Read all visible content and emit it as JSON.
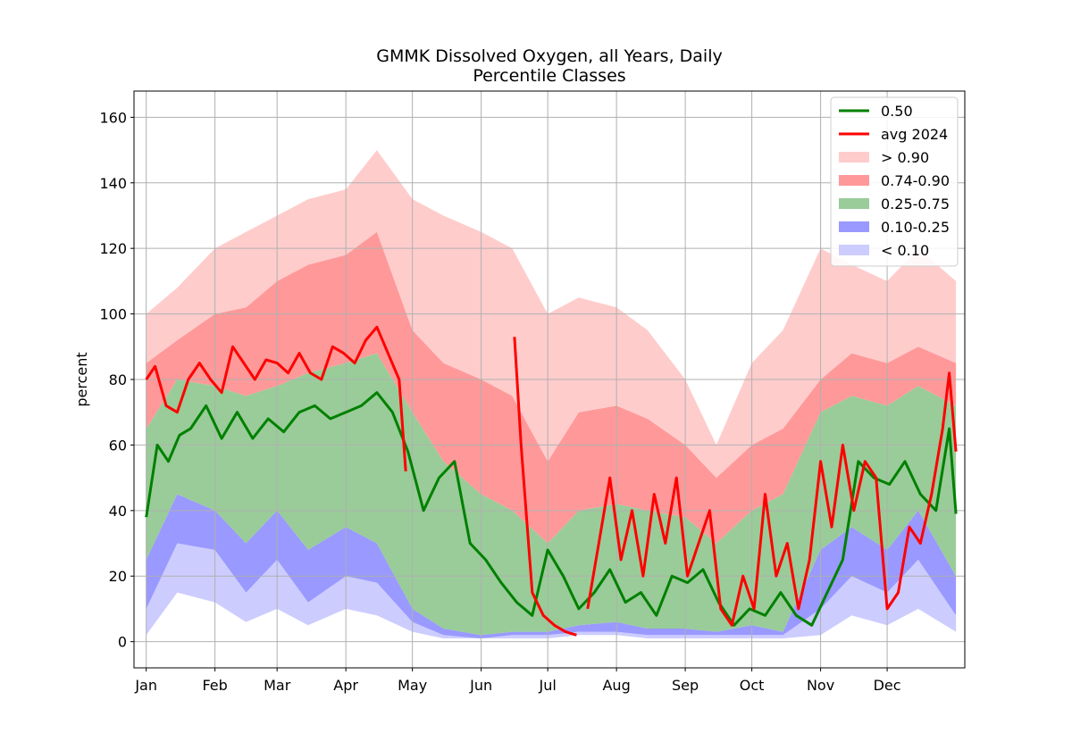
{
  "chart_data": {
    "type": "area",
    "title": "GMMK Dissolved Oxygen, all Years, Daily",
    "subtitle": "Percentile Classes",
    "xlabel": "",
    "ylabel": "percent",
    "ylim": [
      -8,
      168
    ],
    "yticks": [
      0,
      20,
      40,
      60,
      80,
      100,
      120,
      140,
      160
    ],
    "xticks": [
      "Jan",
      "Feb",
      "Mar",
      "Apr",
      "May",
      "Jun",
      "Jul",
      "Aug",
      "Sep",
      "Oct",
      "Nov",
      "Dec"
    ],
    "grid": true,
    "legend_position": "top-right",
    "colors": {
      "median": "#008000",
      "avg2024": "#ff0000",
      "above90": "#ffcccc",
      "p74_90": "#ff9999",
      "p25_75": "#99cc99",
      "p10_25": "#9999ff",
      "below10": "#ccccff"
    },
    "legend": [
      {
        "label": "0.50",
        "kind": "line",
        "color": "#008000"
      },
      {
        "label": "avg 2024",
        "kind": "line",
        "color": "#ff0000"
      },
      {
        "label": "> 0.90",
        "kind": "patch",
        "color": "#ffcccc"
      },
      {
        "label": "0.74-0.90",
        "kind": "patch",
        "color": "#ff9999"
      },
      {
        "label": "0.25-0.75",
        "kind": "patch",
        "color": "#99cc99"
      },
      {
        "label": "0.10-0.25",
        "kind": "patch",
        "color": "#9999ff"
      },
      {
        "label": "< 0.10",
        "kind": "patch",
        "color": "#ccccff"
      }
    ],
    "x_days": [
      1,
      15,
      32,
      46,
      60,
      74,
      91,
      105,
      121,
      135,
      152,
      166,
      182,
      196,
      213,
      227,
      244,
      258,
      274,
      288,
      305,
      319,
      335,
      349,
      366
    ],
    "series": [
      {
        "name": "< 0.10",
        "role": "band",
        "lower": [
          2,
          15,
          12,
          6,
          10,
          5,
          10,
          8,
          3,
          1,
          1,
          1,
          1,
          2,
          2,
          1,
          1,
          1,
          1,
          1,
          2,
          8,
          5,
          10,
          3
        ],
        "upper": [
          10,
          30,
          28,
          15,
          25,
          12,
          20,
          18,
          6,
          2,
          1,
          2,
          2,
          3,
          3,
          2,
          2,
          2,
          2,
          2,
          10,
          20,
          15,
          25,
          8
        ]
      },
      {
        "name": "0.10-0.25",
        "role": "band",
        "lower": [
          10,
          30,
          28,
          15,
          25,
          12,
          20,
          18,
          6,
          2,
          1,
          2,
          2,
          3,
          3,
          2,
          2,
          2,
          2,
          2,
          10,
          20,
          15,
          25,
          8
        ],
        "upper": [
          25,
          45,
          40,
          30,
          40,
          28,
          35,
          30,
          10,
          4,
          2,
          3,
          3,
          5,
          6,
          4,
          4,
          3,
          5,
          3,
          28,
          35,
          28,
          40,
          20
        ]
      },
      {
        "name": "0.25-0.75",
        "role": "band",
        "lower": [
          25,
          45,
          40,
          30,
          40,
          28,
          35,
          30,
          10,
          4,
          2,
          3,
          3,
          5,
          6,
          4,
          4,
          3,
          5,
          3,
          28,
          35,
          28,
          40,
          20
        ],
        "upper": [
          65,
          80,
          78,
          75,
          78,
          82,
          85,
          88,
          70,
          55,
          45,
          40,
          30,
          40,
          42,
          40,
          38,
          30,
          40,
          45,
          70,
          75,
          72,
          78,
          72
        ]
      },
      {
        "name": "0.74-0.90",
        "role": "band",
        "lower": [
          65,
          80,
          78,
          75,
          78,
          82,
          85,
          88,
          70,
          55,
          45,
          40,
          30,
          40,
          42,
          40,
          38,
          30,
          40,
          45,
          70,
          75,
          72,
          78,
          72
        ],
        "upper": [
          85,
          92,
          100,
          102,
          110,
          115,
          118,
          125,
          95,
          85,
          80,
          75,
          55,
          70,
          72,
          68,
          60,
          50,
          60,
          65,
          80,
          88,
          85,
          90,
          85
        ]
      },
      {
        "name": "> 0.90",
        "role": "band",
        "lower": [
          85,
          92,
          100,
          102,
          110,
          115,
          118,
          125,
          95,
          85,
          80,
          75,
          55,
          70,
          72,
          68,
          60,
          50,
          60,
          65,
          80,
          88,
          85,
          90,
          85
        ],
        "upper": [
          100,
          108,
          120,
          125,
          130,
          135,
          138,
          150,
          135,
          130,
          125,
          120,
          100,
          105,
          102,
          95,
          80,
          60,
          85,
          95,
          120,
          115,
          110,
          120,
          110
        ]
      },
      {
        "name": "0.50",
        "role": "line",
        "x": [
          1,
          6,
          11,
          16,
          21,
          28,
          35,
          42,
          49,
          56,
          63,
          70,
          77,
          84,
          91,
          98,
          105,
          112,
          119,
          126,
          133,
          140,
          147,
          154,
          161,
          168,
          175,
          182,
          189,
          196,
          203,
          210,
          217,
          224,
          231,
          238,
          245,
          252,
          259,
          266,
          273,
          280,
          287,
          294,
          301,
          308,
          315,
          322,
          329,
          336,
          343,
          350,
          357,
          363,
          366
        ],
        "values": [
          38,
          60,
          55,
          63,
          65,
          72,
          62,
          70,
          62,
          68,
          64,
          70,
          72,
          68,
          70,
          72,
          76,
          70,
          58,
          40,
          50,
          55,
          30,
          25,
          18,
          12,
          8,
          28,
          20,
          10,
          15,
          22,
          12,
          15,
          8,
          20,
          18,
          22,
          12,
          5,
          10,
          8,
          15,
          8,
          5,
          15,
          25,
          55,
          50,
          48,
          55,
          45,
          40,
          65,
          39
        ]
      },
      {
        "name": "avg 2024",
        "role": "line",
        "segments": [
          {
            "x": [
              1,
              5,
              10,
              15,
              20,
              25,
              30,
              35,
              40,
              45,
              50,
              55,
              60,
              65,
              70,
              75,
              80,
              85,
              90,
              95,
              100,
              105,
              110,
              115,
              118
            ],
            "values": [
              80,
              84,
              72,
              70,
              80,
              85,
              80,
              76,
              90,
              85,
              80,
              86,
              85,
              82,
              88,
              82,
              80,
              90,
              88,
              85,
              92,
              96,
              88,
              80,
              52
            ]
          },
          {
            "x": [
              167,
              170,
              175,
              180,
              185,
              190,
              195
            ],
            "values": [
              93,
              60,
              15,
              8,
              5,
              3,
              2
            ]
          },
          {
            "x": [
              200,
              205,
              210,
              215,
              220,
              225,
              230,
              235,
              240,
              245,
              250,
              255,
              260,
              265,
              270,
              275,
              280,
              285,
              290,
              295,
              300,
              305,
              310,
              315,
              320,
              325,
              330,
              335,
              340,
              345,
              350,
              355,
              360,
              363,
              366
            ],
            "values": [
              10,
              30,
              50,
              25,
              40,
              20,
              45,
              30,
              50,
              20,
              30,
              40,
              10,
              5,
              20,
              10,
              45,
              20,
              30,
              10,
              25,
              55,
              35,
              60,
              40,
              55,
              50,
              10,
              15,
              35,
              30,
              45,
              65,
              82,
              58
            ]
          }
        ]
      }
    ]
  }
}
